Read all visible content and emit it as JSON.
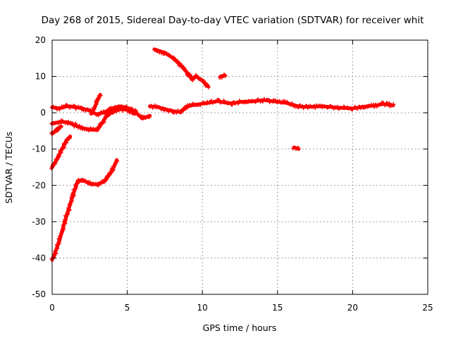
{
  "chart_data": {
    "type": "scatter",
    "title": "Day 268 of 2015, Sidereal Day-to-day VTEC variation (SDTVAR) for receiver whit",
    "xlabel": "GPS time / hours",
    "ylabel": "SDTVAR / TECUs",
    "xlim": [
      0,
      25
    ],
    "ylim": [
      -50,
      20
    ],
    "xticks": [
      0,
      5,
      10,
      15,
      20,
      25
    ],
    "yticks": [
      -50,
      -40,
      -30,
      -20,
      -10,
      0,
      10,
      20
    ],
    "grid": true,
    "marker": "plus",
    "series_color": "#ff0000",
    "series": [
      {
        "name": "main-band-early",
        "points": [
          [
            0,
            1.5
          ],
          [
            0.5,
            1.2
          ],
          [
            1.0,
            1.8
          ],
          [
            1.5,
            1.6
          ],
          [
            2.0,
            1.2
          ],
          [
            2.5,
            0.6
          ],
          [
            3.0,
            -0.5
          ],
          [
            3.5,
            0.2
          ],
          [
            4.0,
            1.2
          ],
          [
            4.5,
            1.8
          ],
          [
            5.0,
            1.4
          ],
          [
            5.5,
            0.4
          ],
          [
            6.0,
            -1.6
          ],
          [
            6.5,
            -0.8
          ]
        ]
      },
      {
        "name": "main-band-late",
        "points": [
          [
            6.5,
            1.8
          ],
          [
            7.0,
            1.6
          ],
          [
            7.5,
            1.0
          ],
          [
            8.0,
            0.5
          ],
          [
            8.5,
            0.2
          ],
          [
            9.0,
            1.8
          ],
          [
            9.5,
            2.2
          ],
          [
            10.0,
            2.5
          ],
          [
            10.5,
            2.8
          ],
          [
            11.0,
            3.2
          ],
          [
            11.5,
            2.8
          ],
          [
            12.0,
            2.6
          ],
          [
            12.5,
            3.0
          ],
          [
            13.0,
            3.1
          ],
          [
            13.5,
            3.2
          ],
          [
            14.0,
            3.5
          ],
          [
            14.5,
            3.3
          ],
          [
            15.0,
            3.0
          ],
          [
            15.5,
            2.8
          ],
          [
            16.0,
            2.2
          ],
          [
            16.5,
            1.7
          ],
          [
            17.0,
            1.6
          ],
          [
            17.5,
            1.7
          ],
          [
            18.0,
            1.8
          ],
          [
            18.5,
            1.6
          ],
          [
            19.0,
            1.4
          ],
          [
            19.5,
            1.3
          ],
          [
            20.0,
            1.2
          ],
          [
            20.5,
            1.5
          ],
          [
            21.0,
            1.8
          ],
          [
            21.5,
            2.0
          ],
          [
            22.0,
            2.4
          ],
          [
            22.5,
            2.2
          ],
          [
            22.7,
            2.0
          ]
        ]
      },
      {
        "name": "early-lower-arc",
        "points": [
          [
            0,
            -3.0
          ],
          [
            0.5,
            -2.5
          ],
          [
            1.0,
            -2.6
          ],
          [
            1.5,
            -3.4
          ],
          [
            2.0,
            -4.2
          ],
          [
            2.5,
            -4.6
          ],
          [
            3.0,
            -4.8
          ],
          [
            3.3,
            -3.0
          ],
          [
            3.6,
            -1.0
          ],
          [
            4.0,
            0.3
          ],
          [
            4.5,
            1.0
          ],
          [
            5.0,
            0.8
          ],
          [
            5.5,
            -0.3
          ]
        ]
      },
      {
        "name": "spike-near-3h",
        "points": [
          [
            2.6,
            -0.3
          ],
          [
            2.8,
            1.2
          ],
          [
            3.0,
            3.2
          ],
          [
            3.2,
            5.0
          ]
        ]
      },
      {
        "name": "short-drop-start",
        "points": [
          [
            0,
            -5.8
          ],
          [
            0.3,
            -4.8
          ],
          [
            0.6,
            -3.8
          ]
        ]
      },
      {
        "name": "descending-arc",
        "points": [
          [
            6.8,
            17.5
          ],
          [
            7.5,
            16.5
          ],
          [
            8.0,
            15.2
          ],
          [
            8.5,
            13.3
          ],
          [
            9.0,
            11.0
          ],
          [
            9.3,
            9.2
          ],
          [
            9.6,
            10.0
          ],
          [
            10.0,
            8.8
          ],
          [
            10.4,
            7.2
          ]
        ]
      },
      {
        "name": "isolated-cluster-11h",
        "points": [
          [
            11.2,
            10.0
          ],
          [
            11.5,
            10.3
          ]
        ]
      },
      {
        "name": "isolated-cluster-16h",
        "points": [
          [
            16.1,
            -9.5
          ],
          [
            16.4,
            -10.0
          ]
        ]
      },
      {
        "name": "steep-drop-2h",
        "points": [
          [
            0,
            -15.0
          ],
          [
            0.3,
            -13.0
          ],
          [
            0.6,
            -10.5
          ],
          [
            0.9,
            -8.0
          ],
          [
            1.2,
            -6.5
          ]
        ]
      },
      {
        "name": "rise-from-minus40",
        "points": [
          [
            0,
            -40.5
          ],
          [
            0.2,
            -38.5
          ],
          [
            0.5,
            -35.0
          ],
          [
            0.8,
            -30.5
          ],
          [
            1.1,
            -26.5
          ],
          [
            1.4,
            -22.5
          ],
          [
            1.7,
            -18.8
          ],
          [
            2.0,
            -18.5
          ],
          [
            2.5,
            -19.5
          ],
          [
            3.0,
            -19.8
          ],
          [
            3.5,
            -18.8
          ],
          [
            4.0,
            -16.0
          ],
          [
            4.3,
            -13.0
          ]
        ]
      }
    ]
  }
}
